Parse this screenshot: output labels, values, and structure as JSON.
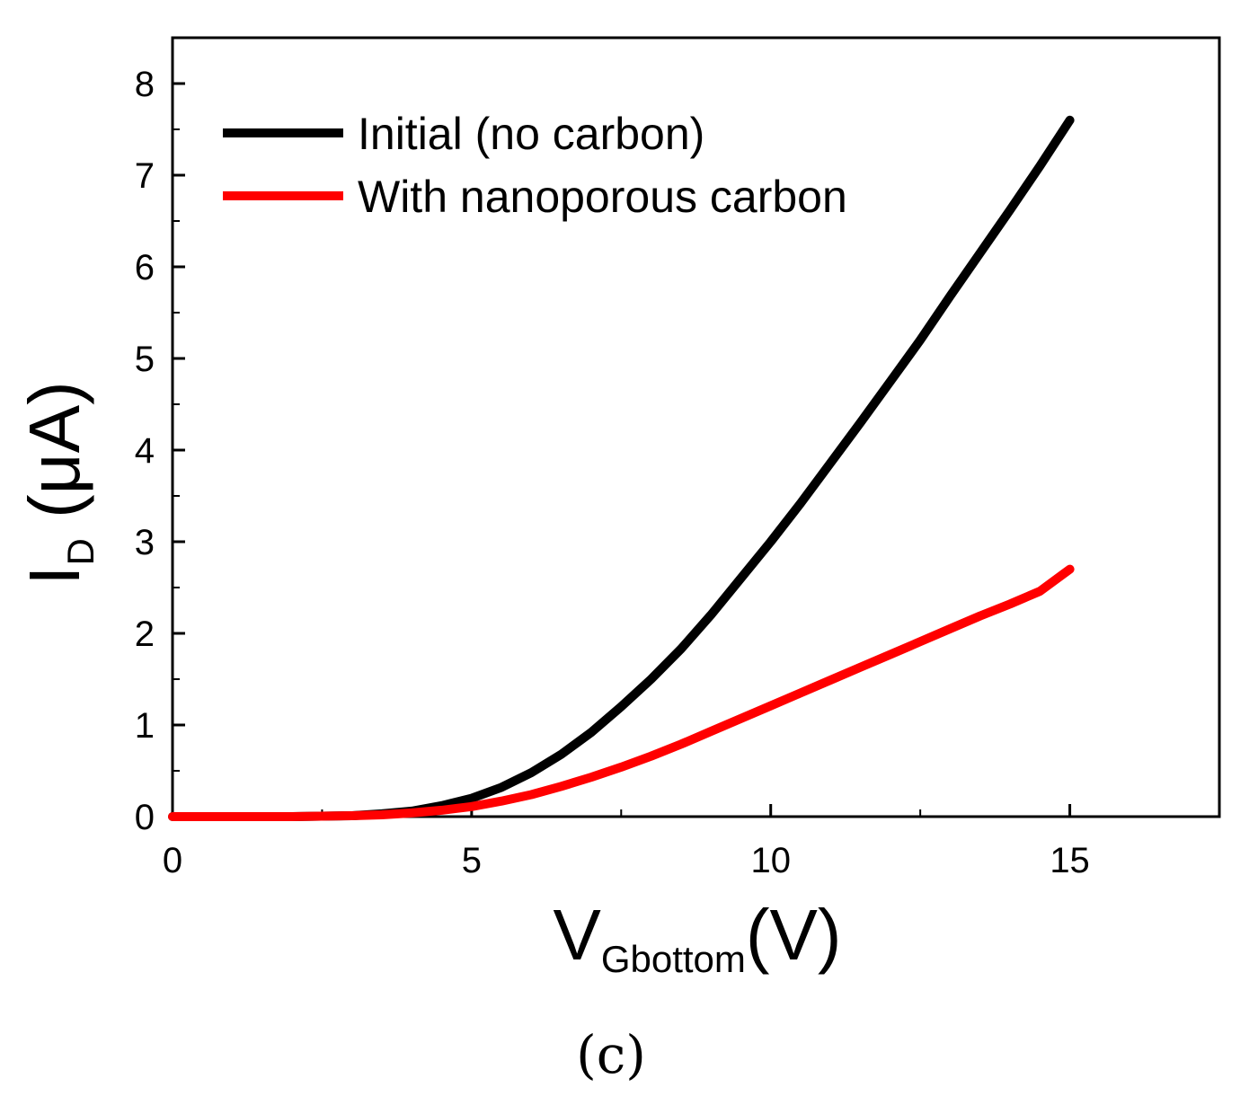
{
  "chart_data": {
    "type": "line",
    "title": "",
    "xlabel": {
      "main": "V",
      "subscript": "Gbottom",
      "unit": "(V)"
    },
    "ylabel": {
      "main": "I",
      "subscript": "D",
      "unit": "(μA)"
    },
    "xlim": [
      0,
      17.5
    ],
    "ylim": [
      0,
      8.5
    ],
    "x_ticks": [
      0,
      5,
      10,
      15
    ],
    "x_tick_labels": [
      "0",
      "5",
      "10",
      "15"
    ],
    "y_ticks": [
      0,
      1,
      2,
      3,
      4,
      5,
      6,
      7,
      8
    ],
    "y_tick_labels": [
      "0",
      "1",
      "2",
      "3",
      "4",
      "5",
      "6",
      "7",
      "8"
    ],
    "grid": false,
    "legend_position": "top-left",
    "series": [
      {
        "name": "Initial (no carbon)",
        "color": "#000000",
        "x": [
          0,
          1,
          2,
          3,
          3.5,
          4,
          4.5,
          5,
          5.5,
          6,
          6.5,
          7,
          7.5,
          8,
          8.5,
          9,
          9.5,
          10,
          10.5,
          11,
          11.5,
          12,
          12.5,
          13,
          13.5,
          14,
          14.5,
          15
        ],
        "y": [
          0,
          0,
          0,
          0.01,
          0.03,
          0.06,
          0.12,
          0.2,
          0.32,
          0.48,
          0.68,
          0.92,
          1.2,
          1.5,
          1.83,
          2.2,
          2.6,
          3.0,
          3.42,
          3.86,
          4.3,
          4.75,
          5.2,
          5.68,
          6.15,
          6.62,
          7.1,
          7.6
        ]
      },
      {
        "name": "With nanoporous carbon",
        "color": "#ff0000",
        "x": [
          0,
          1,
          2,
          3,
          3.5,
          4,
          4.5,
          5,
          5.5,
          6,
          6.5,
          7,
          7.5,
          8,
          8.5,
          9,
          9.5,
          10,
          10.5,
          11,
          11.5,
          12,
          12.5,
          13,
          13.5,
          14,
          14.5,
          15
        ],
        "y": [
          0,
          0,
          0,
          0.01,
          0.02,
          0.04,
          0.07,
          0.11,
          0.17,
          0.24,
          0.33,
          0.43,
          0.54,
          0.66,
          0.79,
          0.93,
          1.07,
          1.21,
          1.35,
          1.49,
          1.63,
          1.77,
          1.91,
          2.05,
          2.19,
          2.32,
          2.46,
          2.7
        ]
      }
    ]
  },
  "caption": "(c)"
}
